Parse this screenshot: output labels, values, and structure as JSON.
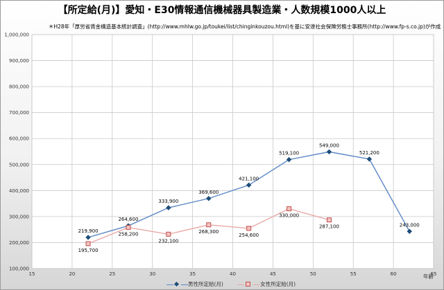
{
  "chart_data": {
    "type": "line",
    "title": "【所定給(月)】愛知・E30情報通信機械器具製造業・人数規模1000人以上",
    "subtitle": "＊H28年「厚労省賃金構造基本統計調査」(http://www.mhlw.go.jp/toukei/list/chinginkouzou.html)を基に安達社会保険労務士事務所(http://www.fp-s.co.jp)が作成",
    "xlabel": "年齢",
    "ylabel": "",
    "xlim": [
      15,
      65
    ],
    "ylim": [
      100000,
      1000000
    ],
    "xticks": [
      "15",
      "20",
      "25",
      "30",
      "35",
      "40",
      "45",
      "50",
      "55",
      "60",
      "65"
    ],
    "yticks": [
      "100,000",
      "200,000",
      "300,000",
      "400,000",
      "500,000",
      "600,000",
      "700,000",
      "800,000",
      "900,000",
      "1,000,000"
    ],
    "grid": true,
    "legend_position": "bottom",
    "series": [
      {
        "name": "男性所定給(月)",
        "color": "#1f4e79",
        "line_color": "#5b87c5",
        "marker": "diamond",
        "x": [
          22,
          27,
          32,
          37,
          42,
          47,
          52,
          57,
          62
        ],
        "values": [
          219900,
          264600,
          333900,
          369600,
          421100,
          519100,
          549000,
          521200,
          243000
        ],
        "labels": [
          "219,900",
          "264,600",
          "333,900",
          "369,600",
          "421,100",
          "519,100",
          "549,000",
          "521,200",
          "243,000"
        ]
      },
      {
        "name": "女性所定給(月)",
        "color": "#c0504d",
        "line_color": "#e8a9a6",
        "marker": "square",
        "x": [
          22,
          27,
          32,
          37,
          42,
          47,
          52
        ],
        "values": [
          195700,
          258200,
          232100,
          268300,
          254600,
          330000,
          287100
        ],
        "labels": [
          "195,700",
          "258,200",
          "232,100",
          "268,300",
          "254,600",
          "330,000",
          "287,100"
        ]
      }
    ]
  }
}
